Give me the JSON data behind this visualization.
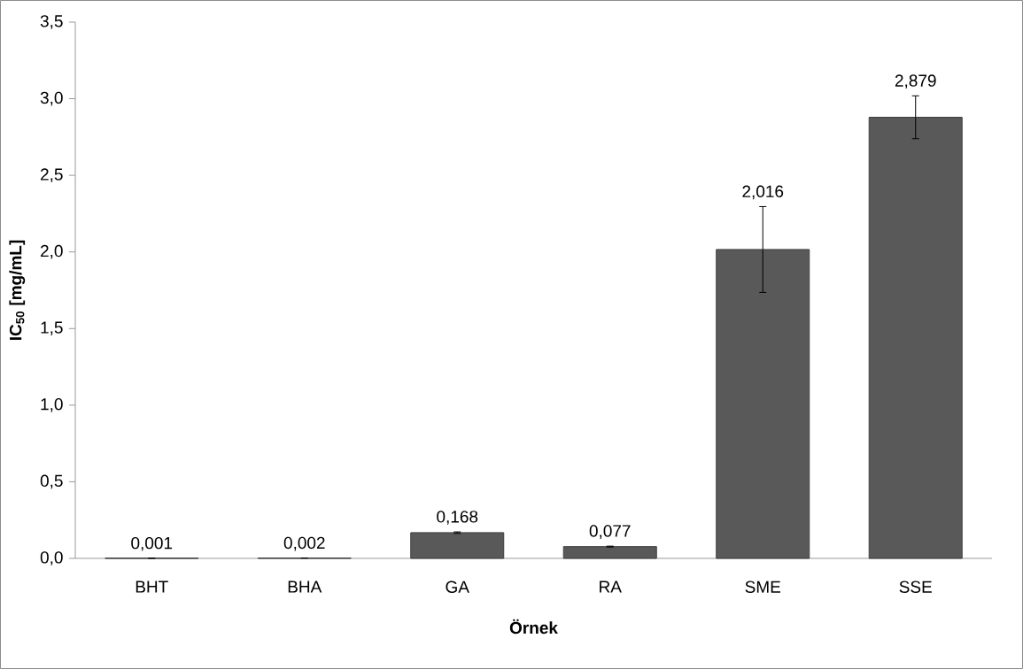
{
  "chart_data": {
    "type": "bar",
    "xlabel": "Örnek",
    "ylabel": "IC$_{50}$ [mg/mL]",
    "categories": [
      "BHT",
      "BHA",
      "GA",
      "RA",
      "SME",
      "SSE"
    ],
    "values": [
      0.001,
      0.002,
      0.168,
      0.077,
      2.016,
      2.879
    ],
    "errors": [
      null,
      null,
      0.005,
      0.003,
      0.28,
      0.14
    ],
    "value_labels": [
      "0,001",
      "0,002",
      "0,168",
      "0,077",
      "2,016",
      "2,879"
    ],
    "color": "#595959",
    "ylim": [
      0,
      3.5
    ],
    "yticks": [
      {
        "value": 0,
        "label": "0,0"
      },
      {
        "value": 0.5,
        "label": "0,5"
      },
      {
        "value": 1,
        "label": "1,0"
      },
      {
        "value": 1.5,
        "label": "1,5"
      },
      {
        "value": 2,
        "label": "2,0"
      },
      {
        "value": 2.5,
        "label": "2,5"
      },
      {
        "value": 3,
        "label": "3,0"
      },
      {
        "value": 3.5,
        "label": "3,5"
      }
    ],
    "grid": false
  }
}
